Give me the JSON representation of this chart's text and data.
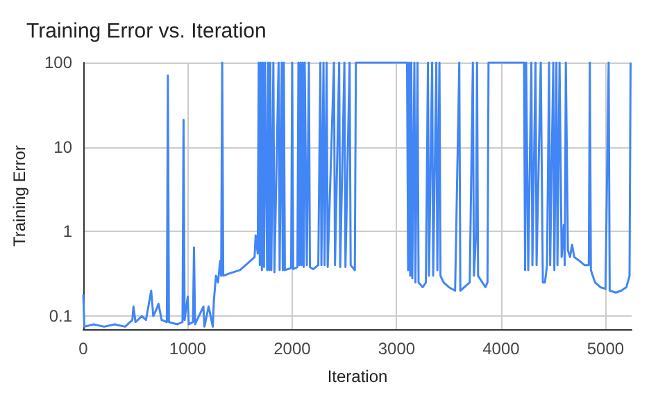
{
  "chart_data": {
    "type": "line",
    "title": "Training Error vs. Iteration",
    "xlabel": "Iteration",
    "ylabel": "Training Error",
    "log": "y",
    "grid": true,
    "marker": "none",
    "line_style": "solid",
    "xlim": [
      0,
      5250
    ],
    "xticks": [
      0,
      1000,
      2000,
      3000,
      4000,
      5000
    ],
    "ylim": [
      0.07,
      100
    ],
    "yticks": [
      0.1,
      1,
      10,
      100
    ],
    "x": [
      0,
      10,
      100,
      200,
      300,
      400,
      470,
      480,
      500,
      560,
      600,
      650,
      670,
      700,
      720,
      750,
      800,
      810,
      820,
      900,
      950,
      960,
      970,
      1000,
      1010,
      1050,
      1060,
      1070,
      1150,
      1160,
      1200,
      1240,
      1250,
      1270,
      1290,
      1310,
      1320,
      1330,
      1340,
      1400,
      1500,
      1600,
      1640,
      1650,
      1670,
      1680,
      1690,
      1700,
      1710,
      1720,
      1730,
      1740,
      1760,
      1770,
      1780,
      1790,
      1800,
      1820,
      1830,
      1870,
      1880,
      1900,
      1910,
      1920,
      1930,
      1990,
      2000,
      2010,
      2050,
      2060,
      2070,
      2080,
      2090,
      2100,
      2110,
      2120,
      2140,
      2160,
      2170,
      2200,
      2250,
      2270,
      2280,
      2300,
      2310,
      2330,
      2340,
      2400,
      2410,
      2450,
      2460,
      2500,
      2510,
      2550,
      2560,
      2600,
      2610,
      3100,
      3110,
      3120,
      3130,
      3140,
      3150,
      3170,
      3180,
      3200,
      3210,
      3250,
      3280,
      3300,
      3310,
      3340,
      3350,
      3380,
      3390,
      3410,
      3420,
      3450,
      3500,
      3560,
      3600,
      3610,
      3700,
      3730,
      3740,
      3760,
      3770,
      3780,
      3850,
      3870,
      3880,
      4220,
      4230,
      4240,
      4260,
      4290,
      4300,
      4330,
      4340,
      4380,
      4400,
      4420,
      4440,
      4460,
      4470,
      4500,
      4510,
      4530,
      4540,
      4560,
      4580,
      4600,
      4610,
      4620,
      4640,
      4660,
      4680,
      4700,
      4750,
      4800,
      4840,
      4850,
      4860,
      4900,
      4950,
      5000,
      5030,
      5040,
      5100,
      5150,
      5200,
      5230,
      5240
    ],
    "series": [
      {
        "color": "#4285f4",
        "values": [
          0.18,
          0.075,
          0.08,
          0.075,
          0.08,
          0.075,
          0.09,
          0.13,
          0.085,
          0.1,
          0.09,
          0.2,
          0.1,
          0.12,
          0.14,
          0.09,
          0.085,
          70,
          0.085,
          0.08,
          0.085,
          21,
          0.09,
          0.17,
          0.08,
          0.085,
          0.65,
          0.08,
          0.13,
          0.075,
          0.13,
          0.075,
          0.15,
          0.3,
          0.25,
          0.45,
          0.3,
          100,
          0.3,
          0.32,
          0.35,
          0.45,
          0.5,
          0.9,
          0.55,
          100,
          0.4,
          100,
          0.35,
          100,
          0.38,
          100,
          0.35,
          100,
          0.35,
          100,
          0.35,
          100,
          0.33,
          100,
          0.35,
          100,
          0.35,
          100,
          0.35,
          0.37,
          100,
          0.36,
          0.38,
          100,
          0.4,
          100,
          0.4,
          100,
          0.38,
          100,
          0.4,
          100,
          0.38,
          0.36,
          0.4,
          100,
          0.4,
          100,
          0.4,
          100,
          0.38,
          100,
          0.4,
          100,
          0.38,
          100,
          0.38,
          100,
          0.4,
          0.35,
          100,
          100,
          0.35,
          100,
          0.3,
          100,
          0.28,
          100,
          0.25,
          100,
          0.25,
          0.22,
          0.25,
          100,
          0.3,
          100,
          0.3,
          100,
          0.35,
          100,
          0.3,
          0.25,
          0.22,
          0.2,
          100,
          0.2,
          0.25,
          100,
          0.3,
          0.9,
          100,
          0.3,
          0.22,
          0.25,
          100,
          100,
          0.35,
          100,
          0.35,
          100,
          0.4,
          100,
          0.4,
          100,
          0.25,
          0.25,
          0.4,
          100,
          0.4,
          100,
          0.35,
          100,
          0.4,
          100,
          0.5,
          1.2,
          0.4,
          100,
          0.6,
          0.5,
          0.7,
          0.5,
          0.45,
          0.4,
          0.4,
          100,
          0.35,
          0.25,
          0.22,
          0.21,
          100,
          0.2,
          0.19,
          0.2,
          0.22,
          0.3,
          100
        ]
      }
    ]
  }
}
